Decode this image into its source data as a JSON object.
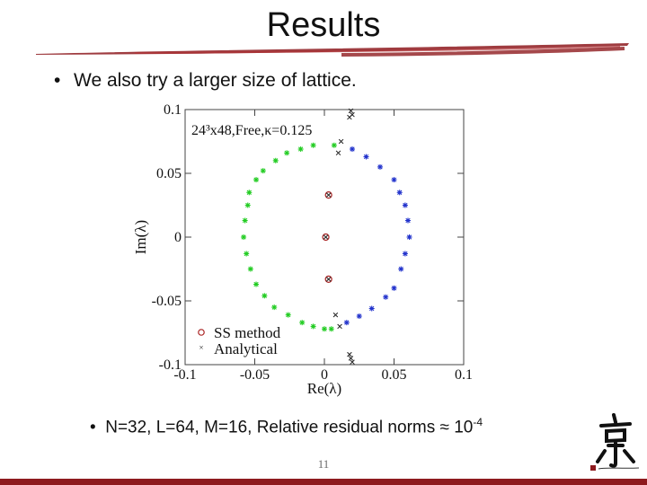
{
  "slide": {
    "title": "Results",
    "bullet1": "We also try a larger size of lattice.",
    "bullet2_text": "N=32, L=64, M=16, Relative residual norms ≈ 10",
    "bullet2_exp": "-4",
    "page_number": "11",
    "colors": {
      "accent": "#8e1a1e",
      "green": "#22cc22",
      "blue": "#2233cc",
      "red": "#aa2222"
    }
  },
  "chart_data": {
    "type": "scatter",
    "annotation": "24³x48,Free,κ=0.125",
    "xlabel": "Re(λ)",
    "ylabel": "Im(λ)",
    "xlim": [
      -0.1,
      0.1
    ],
    "ylim": [
      -0.1,
      0.1
    ],
    "xticks": [
      "-0.1",
      "-0.05",
      "0",
      "0.05",
      "0.1"
    ],
    "yticks": [
      "0.1",
      "0.05",
      "0",
      "-0.05",
      "-0.1"
    ],
    "legend": {
      "position": "bottom-left",
      "entries": [
        "SS method",
        "Analytical"
      ]
    },
    "series": [
      {
        "name": "SS method",
        "points": [
          [
            0.003,
            0.033
          ],
          [
            0.001,
            0.0
          ],
          [
            0.003,
            -0.033
          ]
        ]
      },
      {
        "name": "Analytical",
        "points": [
          [
            0.019,
            0.099
          ],
          [
            0.02,
            0.096
          ],
          [
            0.018,
            0.094
          ],
          [
            0.012,
            0.075
          ],
          [
            0.01,
            0.066
          ],
          [
            0.003,
            0.033
          ],
          [
            0.001,
            0.0
          ],
          [
            0.003,
            -0.033
          ],
          [
            0.008,
            -0.061
          ],
          [
            0.011,
            -0.07
          ],
          [
            0.018,
            -0.092
          ],
          [
            0.019,
            -0.095
          ],
          [
            0.02,
            -0.098
          ]
        ]
      },
      {
        "points": [
          [
            -0.055,
            0.025
          ],
          [
            -0.057,
            0.013
          ],
          [
            -0.058,
            0.0
          ],
          [
            -0.056,
            -0.013
          ],
          [
            -0.053,
            -0.025
          ],
          [
            -0.054,
            0.035
          ],
          [
            -0.049,
            0.045
          ],
          [
            -0.044,
            0.052
          ],
          [
            -0.035,
            0.06
          ],
          [
            -0.027,
            0.066
          ],
          [
            -0.017,
            0.069
          ],
          [
            -0.008,
            0.072
          ],
          [
            0.007,
            0.072
          ],
          [
            -0.049,
            -0.037
          ],
          [
            -0.043,
            -0.046
          ],
          [
            -0.036,
            -0.055
          ],
          [
            -0.026,
            -0.061
          ],
          [
            -0.016,
            -0.067
          ],
          [
            -0.008,
            -0.07
          ],
          [
            0.005,
            -0.072
          ],
          [
            0.0,
            -0.072
          ]
        ]
      },
      {
        "points": [
          [
            0.02,
            0.069
          ],
          [
            0.03,
            0.063
          ],
          [
            0.04,
            0.055
          ],
          [
            0.05,
            0.045
          ],
          [
            0.054,
            0.035
          ],
          [
            0.058,
            0.025
          ],
          [
            0.06,
            0.013
          ],
          [
            0.061,
            0.0
          ],
          [
            0.058,
            -0.013
          ],
          [
            0.055,
            -0.025
          ],
          [
            0.05,
            -0.04
          ],
          [
            0.044,
            -0.047
          ],
          [
            0.034,
            -0.056
          ],
          [
            0.025,
            -0.062
          ],
          [
            0.016,
            -0.067
          ]
        ]
      }
    ]
  }
}
